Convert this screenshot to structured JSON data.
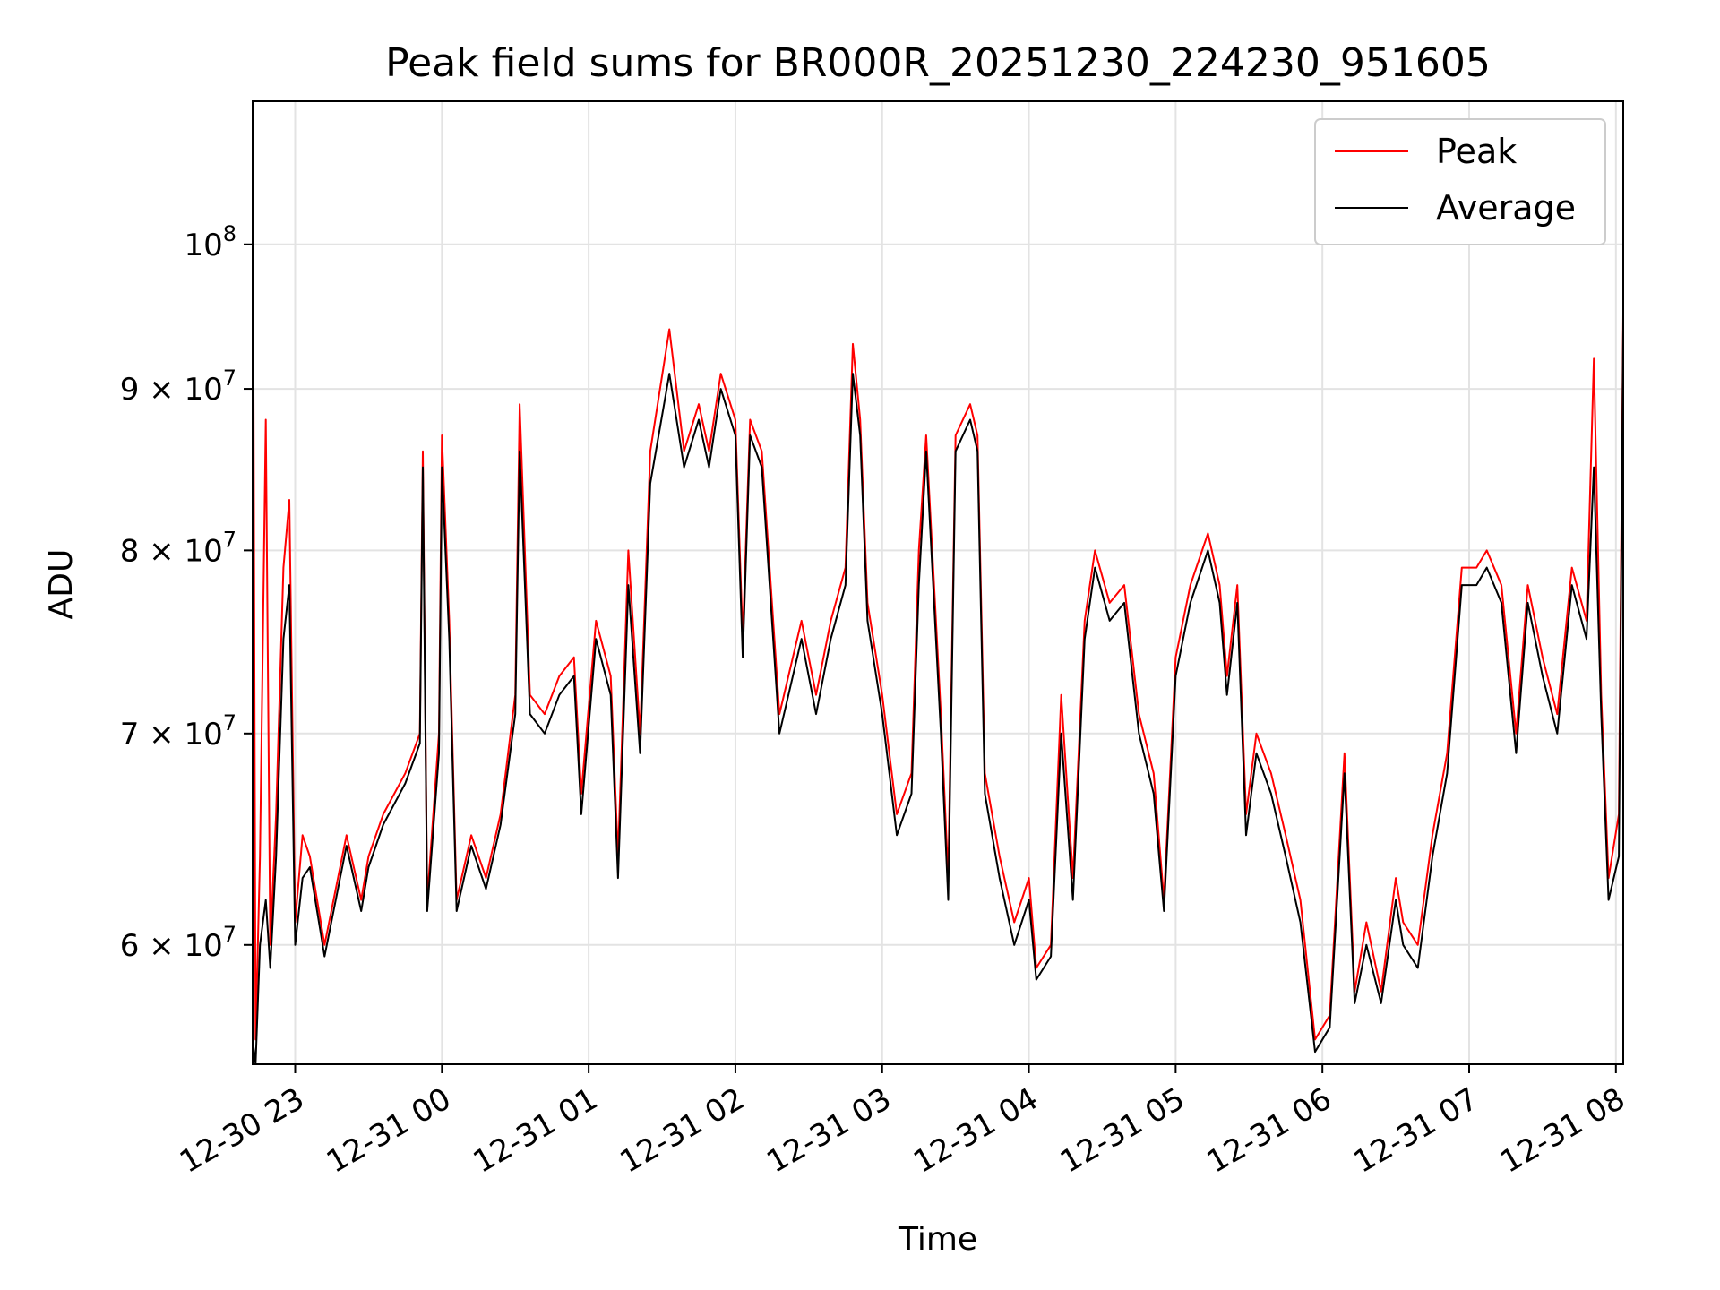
{
  "chart_data": {
    "type": "line",
    "title": "Peak field sums for BR000R_20251230_224230_951605",
    "xlabel": "Time",
    "ylabel": "ADU",
    "yscale": "log",
    "xlim": [
      -0.29,
      9.05
    ],
    "ylim": [
      55000000,
      111000000
    ],
    "x_ticks": [
      {
        "value": 0,
        "label": "12-30 23"
      },
      {
        "value": 1,
        "label": "12-31 00"
      },
      {
        "value": 2,
        "label": "12-31 01"
      },
      {
        "value": 3,
        "label": "12-31 02"
      },
      {
        "value": 4,
        "label": "12-31 03"
      },
      {
        "value": 5,
        "label": "12-31 04"
      },
      {
        "value": 6,
        "label": "12-31 05"
      },
      {
        "value": 7,
        "label": "12-31 06"
      },
      {
        "value": 8,
        "label": "12-31 07"
      },
      {
        "value": 9,
        "label": "12-31 08"
      }
    ],
    "y_ticks": [
      {
        "value": 60000000,
        "label": "6 × 10",
        "exp": "7"
      },
      {
        "value": 70000000,
        "label": "7 × 10",
        "exp": "7"
      },
      {
        "value": 80000000,
        "label": "8 × 10",
        "exp": "7"
      },
      {
        "value": 90000000,
        "label": "9 × 10",
        "exp": "7"
      },
      {
        "value": 100000000,
        "label": "10",
        "exp": "8"
      }
    ],
    "grid": true,
    "legend_position": "top-right",
    "series": [
      {
        "name": "Peak",
        "color": "#ff0000",
        "points": [
          [
            -0.29,
            111000000
          ],
          [
            -0.27,
            56000000
          ],
          [
            -0.24,
            64000000
          ],
          [
            -0.2,
            88000000
          ],
          [
            -0.17,
            60000000
          ],
          [
            -0.13,
            66000000
          ],
          [
            -0.08,
            79000000
          ],
          [
            -0.04,
            83000000
          ],
          [
            0,
            61000000
          ],
          [
            0.05,
            65000000
          ],
          [
            0.1,
            64000000
          ],
          [
            0.2,
            60000000
          ],
          [
            0.35,
            65000000
          ],
          [
            0.45,
            62000000
          ],
          [
            0.5,
            64000000
          ],
          [
            0.6,
            66000000
          ],
          [
            0.75,
            68000000
          ],
          [
            0.85,
            70000000
          ],
          [
            0.87,
            86000000
          ],
          [
            0.9,
            62000000
          ],
          [
            0.98,
            70000000
          ],
          [
            1.0,
            87000000
          ],
          [
            1.05,
            76000000
          ],
          [
            1.1,
            62000000
          ],
          [
            1.2,
            65000000
          ],
          [
            1.3,
            63000000
          ],
          [
            1.4,
            66000000
          ],
          [
            1.5,
            72000000
          ],
          [
            1.53,
            89000000
          ],
          [
            1.6,
            72000000
          ],
          [
            1.7,
            71000000
          ],
          [
            1.8,
            73000000
          ],
          [
            1.9,
            74000000
          ],
          [
            1.95,
            67000000
          ],
          [
            2.05,
            76000000
          ],
          [
            2.15,
            73000000
          ],
          [
            2.2,
            64000000
          ],
          [
            2.27,
            80000000
          ],
          [
            2.35,
            70000000
          ],
          [
            2.42,
            86000000
          ],
          [
            2.55,
            94000000
          ],
          [
            2.65,
            86000000
          ],
          [
            2.75,
            89000000
          ],
          [
            2.82,
            86000000
          ],
          [
            2.9,
            91000000
          ],
          [
            3.0,
            88000000
          ],
          [
            3.05,
            75000000
          ],
          [
            3.1,
            88000000
          ],
          [
            3.18,
            86000000
          ],
          [
            3.3,
            71000000
          ],
          [
            3.45,
            76000000
          ],
          [
            3.55,
            72000000
          ],
          [
            3.65,
            76000000
          ],
          [
            3.75,
            79000000
          ],
          [
            3.8,
            93000000
          ],
          [
            3.85,
            88000000
          ],
          [
            3.9,
            77000000
          ],
          [
            4.0,
            72000000
          ],
          [
            4.1,
            66000000
          ],
          [
            4.2,
            68000000
          ],
          [
            4.25,
            80000000
          ],
          [
            4.3,
            87000000
          ],
          [
            4.4,
            71000000
          ],
          [
            4.45,
            63000000
          ],
          [
            4.5,
            87000000
          ],
          [
            4.6,
            89000000
          ],
          [
            4.65,
            87000000
          ],
          [
            4.7,
            68000000
          ],
          [
            4.8,
            64000000
          ],
          [
            4.9,
            61000000
          ],
          [
            5.0,
            63000000
          ],
          [
            5.05,
            59000000
          ],
          [
            5.15,
            60000000
          ],
          [
            5.22,
            72000000
          ],
          [
            5.3,
            63000000
          ],
          [
            5.38,
            76000000
          ],
          [
            5.45,
            80000000
          ],
          [
            5.55,
            77000000
          ],
          [
            5.65,
            78000000
          ],
          [
            5.75,
            71000000
          ],
          [
            5.85,
            68000000
          ],
          [
            5.92,
            62000000
          ],
          [
            6.0,
            74000000
          ],
          [
            6.1,
            78000000
          ],
          [
            6.22,
            81000000
          ],
          [
            6.3,
            78000000
          ],
          [
            6.35,
            73000000
          ],
          [
            6.42,
            78000000
          ],
          [
            6.48,
            66000000
          ],
          [
            6.55,
            70000000
          ],
          [
            6.65,
            68000000
          ],
          [
            6.75,
            65000000
          ],
          [
            6.85,
            62000000
          ],
          [
            6.95,
            56000000
          ],
          [
            7.05,
            57000000
          ],
          [
            7.15,
            69000000
          ],
          [
            7.22,
            58000000
          ],
          [
            7.3,
            61000000
          ],
          [
            7.4,
            58000000
          ],
          [
            7.5,
            63000000
          ],
          [
            7.55,
            61000000
          ],
          [
            7.65,
            60000000
          ],
          [
            7.75,
            65000000
          ],
          [
            7.85,
            69000000
          ],
          [
            7.95,
            79000000
          ],
          [
            8.05,
            79000000
          ],
          [
            8.12,
            80000000
          ],
          [
            8.22,
            78000000
          ],
          [
            8.32,
            70000000
          ],
          [
            8.4,
            78000000
          ],
          [
            8.5,
            74000000
          ],
          [
            8.6,
            71000000
          ],
          [
            8.7,
            79000000
          ],
          [
            8.8,
            76000000
          ],
          [
            8.85,
            92000000
          ],
          [
            8.9,
            72000000
          ],
          [
            8.95,
            63000000
          ],
          [
            9.02,
            66000000
          ],
          [
            9.05,
            95000000
          ]
        ]
      },
      {
        "name": "Average",
        "color": "#000000",
        "points": [
          [
            -0.29,
            56000000
          ],
          [
            -0.27,
            55000000
          ],
          [
            -0.24,
            60000000
          ],
          [
            -0.2,
            62000000
          ],
          [
            -0.17,
            59000000
          ],
          [
            -0.13,
            64000000
          ],
          [
            -0.08,
            75000000
          ],
          [
            -0.04,
            78000000
          ],
          [
            0,
            60000000
          ],
          [
            0.05,
            63000000
          ],
          [
            0.1,
            63500000
          ],
          [
            0.2,
            59500000
          ],
          [
            0.35,
            64500000
          ],
          [
            0.45,
            61500000
          ],
          [
            0.5,
            63500000
          ],
          [
            0.6,
            65500000
          ],
          [
            0.75,
            67500000
          ],
          [
            0.85,
            69500000
          ],
          [
            0.87,
            85000000
          ],
          [
            0.9,
            61500000
          ],
          [
            0.98,
            69000000
          ],
          [
            1.0,
            85000000
          ],
          [
            1.05,
            75000000
          ],
          [
            1.1,
            61500000
          ],
          [
            1.2,
            64500000
          ],
          [
            1.3,
            62500000
          ],
          [
            1.4,
            65500000
          ],
          [
            1.5,
            71000000
          ],
          [
            1.53,
            86000000
          ],
          [
            1.6,
            71000000
          ],
          [
            1.7,
            70000000
          ],
          [
            1.8,
            72000000
          ],
          [
            1.9,
            73000000
          ],
          [
            1.95,
            66000000
          ],
          [
            2.05,
            75000000
          ],
          [
            2.15,
            72000000
          ],
          [
            2.2,
            63000000
          ],
          [
            2.27,
            78000000
          ],
          [
            2.35,
            69000000
          ],
          [
            2.42,
            84000000
          ],
          [
            2.55,
            91000000
          ],
          [
            2.65,
            85000000
          ],
          [
            2.75,
            88000000
          ],
          [
            2.82,
            85000000
          ],
          [
            2.9,
            90000000
          ],
          [
            3.0,
            87000000
          ],
          [
            3.05,
            74000000
          ],
          [
            3.1,
            87000000
          ],
          [
            3.18,
            85000000
          ],
          [
            3.3,
            70000000
          ],
          [
            3.45,
            75000000
          ],
          [
            3.55,
            71000000
          ],
          [
            3.65,
            75000000
          ],
          [
            3.75,
            78000000
          ],
          [
            3.8,
            91000000
          ],
          [
            3.85,
            87000000
          ],
          [
            3.9,
            76000000
          ],
          [
            4.0,
            71000000
          ],
          [
            4.1,
            65000000
          ],
          [
            4.2,
            67000000
          ],
          [
            4.25,
            78000000
          ],
          [
            4.3,
            86000000
          ],
          [
            4.4,
            70000000
          ],
          [
            4.45,
            62000000
          ],
          [
            4.5,
            86000000
          ],
          [
            4.6,
            88000000
          ],
          [
            4.65,
            86000000
          ],
          [
            4.7,
            67000000
          ],
          [
            4.8,
            63000000
          ],
          [
            4.9,
            60000000
          ],
          [
            5.0,
            62000000
          ],
          [
            5.05,
            58500000
          ],
          [
            5.15,
            59500000
          ],
          [
            5.22,
            70000000
          ],
          [
            5.3,
            62000000
          ],
          [
            5.38,
            75000000
          ],
          [
            5.45,
            79000000
          ],
          [
            5.55,
            76000000
          ],
          [
            5.65,
            77000000
          ],
          [
            5.75,
            70000000
          ],
          [
            5.85,
            67000000
          ],
          [
            5.92,
            61500000
          ],
          [
            6.0,
            73000000
          ],
          [
            6.1,
            77000000
          ],
          [
            6.22,
            80000000
          ],
          [
            6.3,
            77000000
          ],
          [
            6.35,
            72000000
          ],
          [
            6.42,
            77000000
          ],
          [
            6.48,
            65000000
          ],
          [
            6.55,
            69000000
          ],
          [
            6.65,
            67000000
          ],
          [
            6.75,
            64000000
          ],
          [
            6.85,
            61000000
          ],
          [
            6.95,
            55500000
          ],
          [
            7.05,
            56500000
          ],
          [
            7.15,
            68000000
          ],
          [
            7.22,
            57500000
          ],
          [
            7.3,
            60000000
          ],
          [
            7.4,
            57500000
          ],
          [
            7.5,
            62000000
          ],
          [
            7.55,
            60000000
          ],
          [
            7.65,
            59000000
          ],
          [
            7.75,
            64000000
          ],
          [
            7.85,
            68000000
          ],
          [
            7.95,
            78000000
          ],
          [
            8.05,
            78000000
          ],
          [
            8.12,
            79000000
          ],
          [
            8.22,
            77000000
          ],
          [
            8.32,
            69000000
          ],
          [
            8.4,
            77000000
          ],
          [
            8.5,
            73000000
          ],
          [
            8.6,
            70000000
          ],
          [
            8.7,
            78000000
          ],
          [
            8.8,
            75000000
          ],
          [
            8.85,
            85000000
          ],
          [
            8.9,
            71000000
          ],
          [
            8.95,
            62000000
          ],
          [
            9.02,
            64000000
          ],
          [
            9.05,
            94000000
          ]
        ]
      }
    ]
  }
}
